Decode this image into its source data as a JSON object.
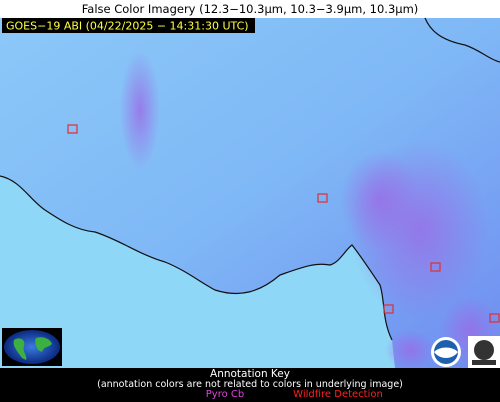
{
  "header": {
    "title": "False Color Imagery (12.3−10.3µm, 10.3−3.9µm, 10.3µm)",
    "timestamp": "GOES−19 ABI (04/22/2025 − 14:31:30 UTC)"
  },
  "annotation_key": {
    "title": "Annotation Key",
    "note": "(annotation colors are not related to colors in underlying image)",
    "items": [
      "Pyro Cb",
      "Wildfire Detection"
    ]
  }
}
